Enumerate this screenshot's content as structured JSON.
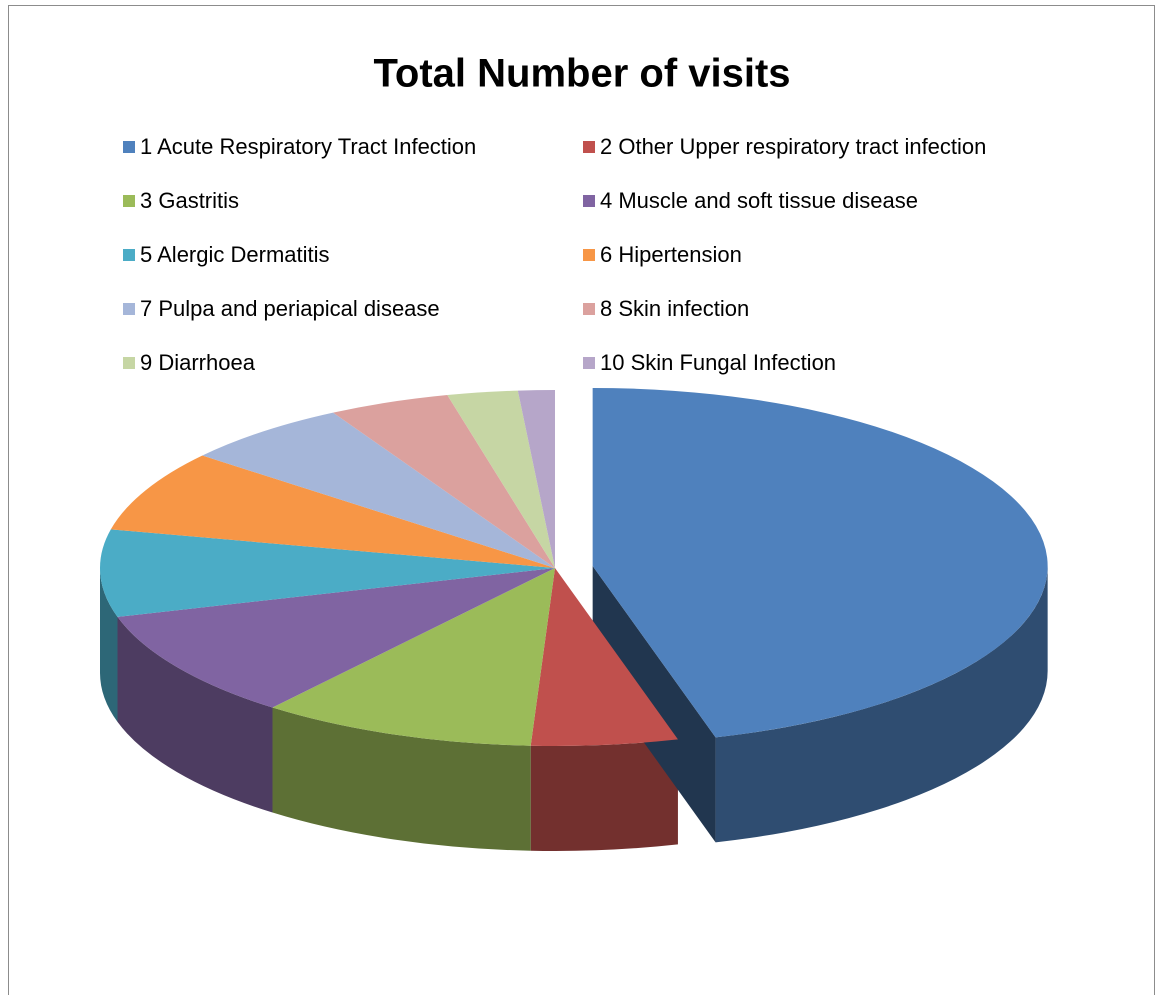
{
  "chart_data": {
    "type": "pie3d",
    "title": "Total Number of visits",
    "categories": [
      "1 Acute Respiratory Tract Infection",
      "2 Other Upper respiratory tract infection",
      "3 Gastritis",
      "4 Muscle and soft tissue disease",
      "5 Alergic Dermatitis",
      "6 Hipertension",
      "7 Pulpa and periapical disease",
      "8 Skin infection",
      "9 Diarrhoea",
      "10 Skin Fungal Infection"
    ],
    "values": [
      45.6,
      5.2,
      9.8,
      9.9,
      7.9,
      7.4,
      6.0,
      4.3,
      2.5,
      1.3
    ],
    "colors": [
      "#4f81bd",
      "#c0504d",
      "#9bbb59",
      "#8064a2",
      "#4bacc6",
      "#f79646",
      "#a5b6d9",
      "#dba19e",
      "#c6d6a4",
      "#b6a6c9"
    ],
    "legend": "top"
  }
}
